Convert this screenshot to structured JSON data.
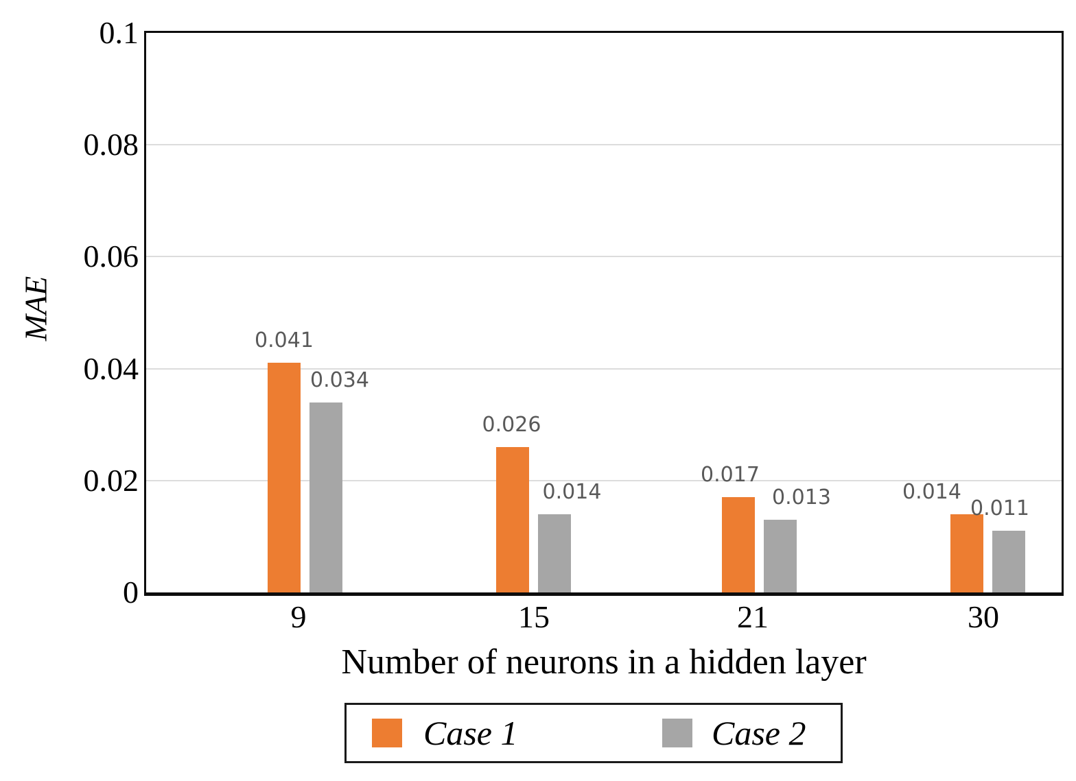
{
  "chart_data": {
    "type": "bar",
    "title": "",
    "xlabel": "Number of neurons in a hidden layer",
    "ylabel": "MAE",
    "categories": [
      "9",
      "15",
      "21",
      "30"
    ],
    "series": [
      {
        "name": "Case 1",
        "color": "#ED7D31",
        "values": [
          0.041,
          0.026,
          0.017,
          0.014
        ],
        "labels": [
          "0.041",
          "0.026",
          "0.017",
          "0.014"
        ]
      },
      {
        "name": "Case 2",
        "color": "#A6A6A6",
        "values": [
          0.034,
          0.014,
          0.013,
          0.011
        ],
        "labels": [
          "0.034",
          "0.014",
          "0.013",
          "0.011"
        ]
      }
    ],
    "ylim": [
      0,
      0.1
    ],
    "yticks": [
      {
        "value": 0,
        "label": "0"
      },
      {
        "value": 0.02,
        "label": "0.02"
      },
      {
        "value": 0.04,
        "label": "0.04"
      },
      {
        "value": 0.06,
        "label": "0.06"
      },
      {
        "value": 0.08,
        "label": "0.08"
      },
      {
        "value": 0.1,
        "label": "0.1"
      }
    ],
    "grid": true,
    "legend_position": "bottom",
    "colors": {
      "grid": "#DCDCDC",
      "axis_border": "#0D0D0D",
      "data_label": "#595959",
      "tick_label": "#000000",
      "background": "#FFFFFF"
    }
  }
}
